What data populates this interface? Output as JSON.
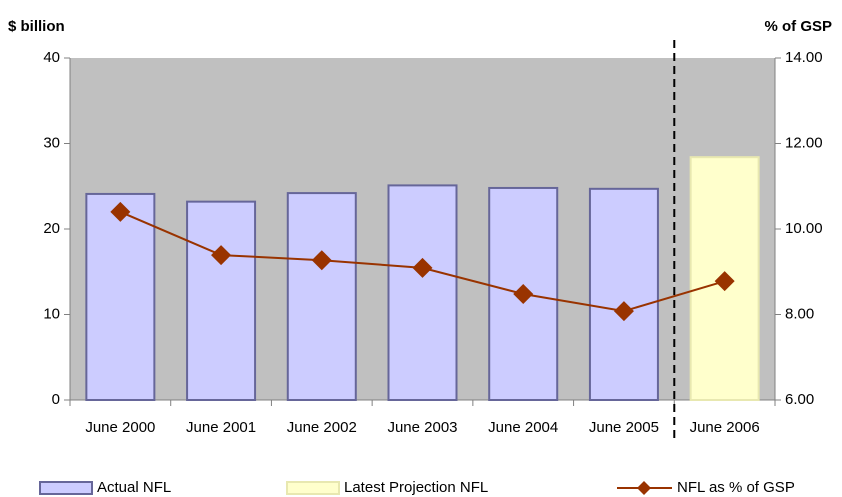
{
  "chart_data": {
    "type": "bar-line",
    "y_label": "$ billion",
    "y2_label": "% of GSP",
    "categories": [
      "June 2000",
      "June 2001",
      "June 2002",
      "June 2003",
      "June 2004",
      "June 2005",
      "June 2006"
    ],
    "series": [
      {
        "name": "Actual NFL",
        "type": "bar",
        "color": "#ccccff",
        "values": [
          24.1,
          23.2,
          24.2,
          25.1,
          24.8,
          24.7,
          null
        ]
      },
      {
        "name": "Latest Projection NFL",
        "type": "bar",
        "color": "#ffffcc",
        "values": [
          null,
          null,
          null,
          null,
          null,
          null,
          28.4
        ]
      },
      {
        "name": "NFL as % of GSP",
        "type": "line",
        "axis": "y2",
        "color": "#993300",
        "values": [
          10.4,
          9.39,
          9.27,
          9.09,
          8.48,
          8.08,
          8.78
        ]
      }
    ],
    "ylim": [
      0,
      40
    ],
    "yticks": [
      0,
      10,
      20,
      30,
      40
    ],
    "y2lim": [
      6,
      14
    ],
    "y2ticks": [
      {
        "value": 6,
        "label": "6.00"
      },
      {
        "value": 8,
        "label": "8.00"
      },
      {
        "value": 10,
        "label": "10.00"
      },
      {
        "value": 12,
        "label": "12.00"
      },
      {
        "value": 14,
        "label": "14.00"
      }
    ],
    "plot_background": "#c0c0c0"
  }
}
